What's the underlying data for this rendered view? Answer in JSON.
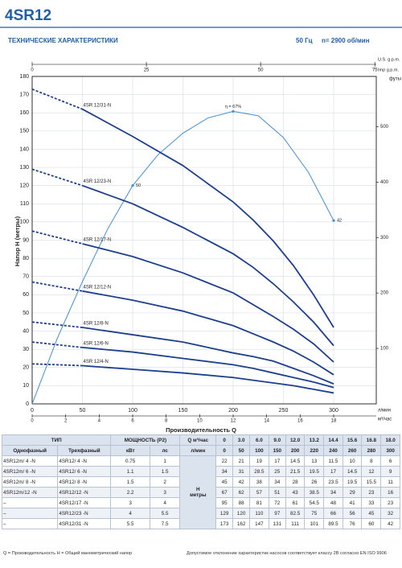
{
  "header": {
    "title": "4SR12",
    "subtitle": "ТЕХНИЧЕСКИЕ ХАРАКТЕРИСТИКИ",
    "frequency": "50 Гц",
    "speed": "n= 2900 об/мин"
  },
  "chart_data": {
    "type": "line",
    "x_label": "Производительность Q",
    "x_unit": "л/мин",
    "y_label": "Напор H (метры)",
    "y2_label": "футы",
    "x": [
      0,
      50,
      100,
      150,
      200,
      220,
      240,
      260,
      280,
      300
    ],
    "xlim": [
      0,
      342.4
    ],
    "xticks": [
      0,
      50,
      100,
      150,
      200,
      250,
      300
    ],
    "x2_unit": "м³/час",
    "x2lim": [
      0,
      20.544
    ],
    "x2ticks": [
      0,
      2,
      4,
      6,
      8,
      10,
      12,
      14,
      16,
      18
    ],
    "top_label": "U.S. g.p.m.",
    "x3_label": "Imp g.p.m.",
    "x3lim": [
      0,
      75.32
    ],
    "x3ticks": [
      0,
      25,
      50,
      75
    ],
    "ylim": [
      0,
      180
    ],
    "yticks": [
      0,
      10,
      20,
      30,
      40,
      50,
      60,
      70,
      80,
      90,
      100,
      110,
      120,
      130,
      140,
      150,
      160,
      170,
      180
    ],
    "y2lim": [
      0,
      590.55
    ],
    "y2ticks": [
      100,
      200,
      300,
      400,
      500
    ],
    "grid": true,
    "series": [
      {
        "name": "4SR 12/4-N",
        "color": "#1d3f8f",
        "values": [
          22,
          21,
          19,
          17,
          14.5,
          13,
          11.5,
          10,
          8,
          6
        ]
      },
      {
        "name": "4SR 12/6-N",
        "color": "#1d3f8f",
        "values": [
          34,
          31,
          28.5,
          25,
          21.5,
          19.5,
          17,
          14.5,
          12,
          9
        ]
      },
      {
        "name": "4SR 12/8-N",
        "color": "#1d3f8f",
        "values": [
          45,
          42,
          38,
          34,
          28,
          26,
          23.5,
          19.5,
          15.5,
          11
        ]
      },
      {
        "name": "4SR 12/12-N",
        "color": "#1d3f8f",
        "values": [
          67,
          62,
          57,
          51,
          43,
          38.5,
          34,
          29,
          23,
          16
        ]
      },
      {
        "name": "4SR 12/17-N",
        "color": "#1d3f8f",
        "values": [
          95,
          88,
          81,
          72,
          61,
          54.5,
          48,
          41,
          33,
          23
        ]
      },
      {
        "name": "4SR 12/23-N",
        "color": "#1d3f8f",
        "values": [
          129,
          120,
          110,
          97,
          82.5,
          75,
          66,
          56,
          45,
          32
        ]
      },
      {
        "name": "4SR 12/31-N",
        "color": "#1d3f8f",
        "values": [
          173,
          162,
          147,
          131,
          111,
          101,
          89.5,
          76,
          60,
          42
        ]
      }
    ],
    "efficiency": {
      "color": "#3d8fd3",
      "ylim": [
        0,
        75
      ],
      "x": [
        0,
        25,
        50,
        75,
        100,
        125,
        150,
        175,
        200,
        225,
        250,
        275,
        300
      ],
      "values": [
        0,
        15,
        28,
        40,
        50,
        57,
        62,
        65.5,
        67,
        66,
        61,
        53,
        42
      ],
      "value_labels": [
        null,
        null,
        null,
        null,
        "50",
        null,
        null,
        null,
        "η = 67%",
        null,
        null,
        null,
        "42"
      ]
    }
  },
  "table": {
    "type": "ТИП",
    "power": "МОЩНОСТЬ (P2)",
    "single": "Однофазный",
    "three": "Трехфазный",
    "kw": "кВт",
    "hp": "лс",
    "q": "Q",
    "q_m3h_unit": "м³/час",
    "q_lmin_unit": "л/мин",
    "h": "H",
    "h_unit": "метры",
    "q_m3h": [
      "0",
      "3.0",
      "6.0",
      "9.0",
      "12.0",
      "13.2",
      "14.4",
      "15.6",
      "16.8",
      "18.0"
    ],
    "rows": [
      [
        "4SR12m/ 4  -N",
        "4SR12/ 4  -N",
        0.75,
        1
      ],
      [
        "4SR12m/ 6  -N",
        "4SR12/ 6  -N",
        1.1,
        1.5
      ],
      [
        "4SR12m/ 8  -N",
        "4SR12/ 8  -N",
        1.5,
        2
      ],
      [
        "4SR12m/12 -N",
        "4SR12/12 -N",
        2.2,
        3
      ],
      [
        "–",
        "4SR12/17 -N",
        3,
        4
      ],
      [
        "–",
        "4SR12/23 -N",
        4,
        5.5
      ],
      [
        "–",
        "4SR12/31 -N",
        5.5,
        7.5
      ]
    ]
  },
  "footer": {
    "legend": "Q = Производительность    H = Общий манометрический напор",
    "note": "Допустимое отклонение характеристик насосов соответствует классу 2В согласно EN ISO 9906"
  }
}
